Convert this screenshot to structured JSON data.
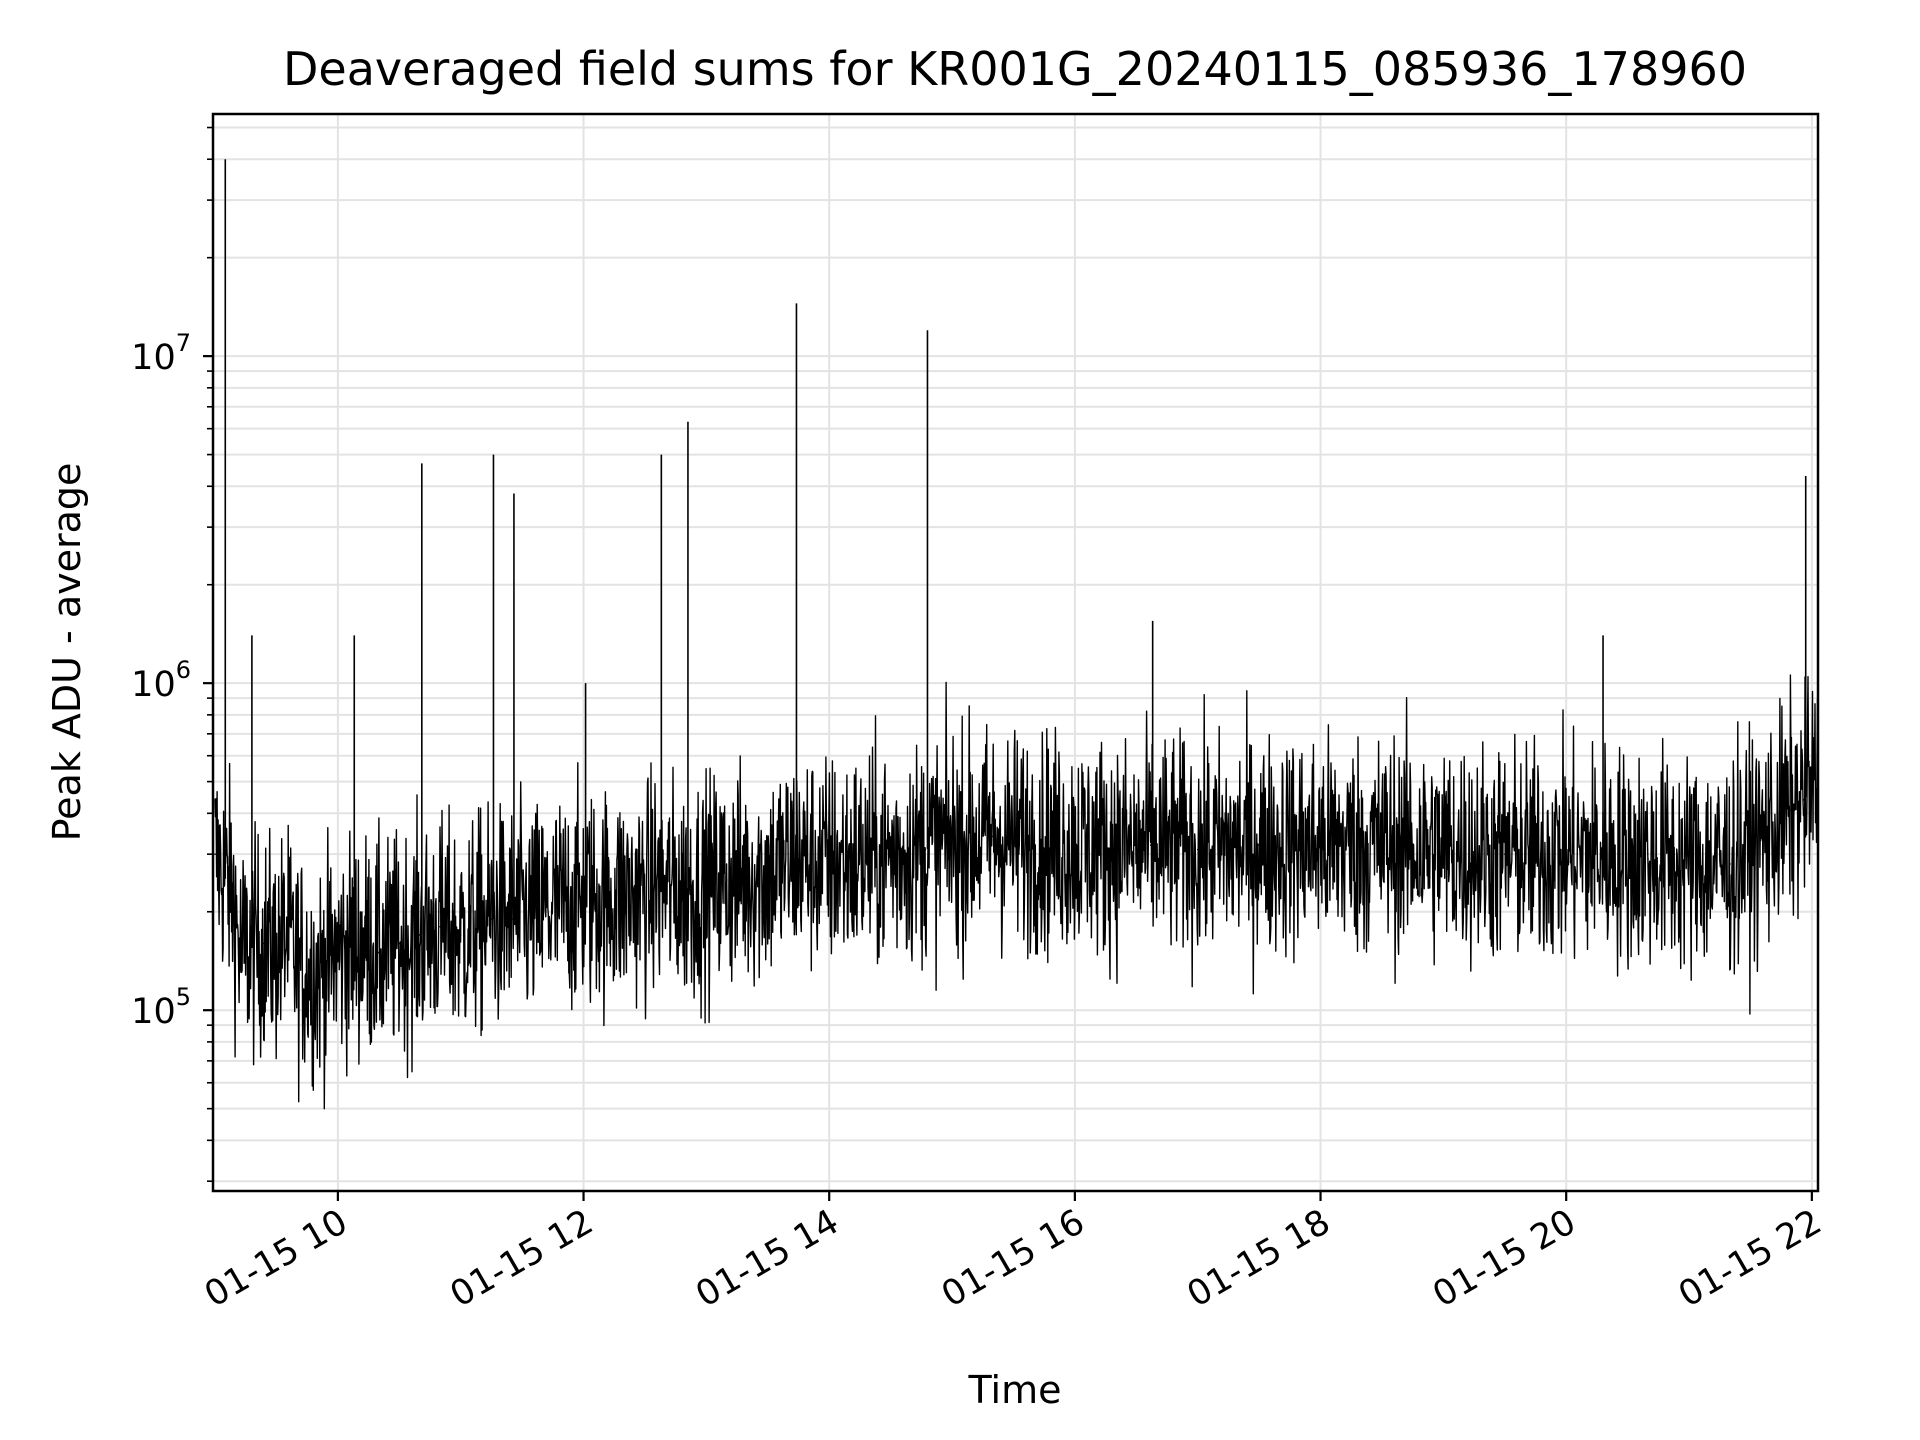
{
  "chart_data": {
    "type": "line",
    "title": "Deaveraged field sums for KR001G_20240115_085936_178960",
    "xlabel": "Time",
    "ylabel": "Peak ADU - average",
    "y_scale": "log",
    "xlim": [
      "2024-01-15 08:59",
      "2024-01-15 22:03"
    ],
    "ylim": [
      28000,
      55000000
    ],
    "grid": true,
    "line_color": "#000000",
    "x_ticks": [
      {
        "value": "2024-01-15 10:00",
        "label": "01-15 10"
      },
      {
        "value": "2024-01-15 12:00",
        "label": "01-15 12"
      },
      {
        "value": "2024-01-15 14:00",
        "label": "01-15 14"
      },
      {
        "value": "2024-01-15 16:00",
        "label": "01-15 16"
      },
      {
        "value": "2024-01-15 18:00",
        "label": "01-15 18"
      },
      {
        "value": "2024-01-15 20:00",
        "label": "01-15 20"
      },
      {
        "value": "2024-01-15 22:00",
        "label": "01-15 22"
      }
    ],
    "y_ticks": [
      {
        "value": 100000,
        "label_base": "10",
        "label_exp": "5"
      },
      {
        "value": 1000000,
        "label_base": "10",
        "label_exp": "6"
      },
      {
        "value": 10000000,
        "label_base": "10",
        "label_exp": "7"
      }
    ],
    "series": [
      {
        "x": [
          "2024-01-15 09:00",
          "2024-01-15 09:05",
          "2024-01-15 09:09",
          "2024-01-15 09:12",
          "2024-01-15 09:18",
          "2024-01-15 09:24",
          "2024-01-15 09:30",
          "2024-01-15 09:35",
          "2024-01-15 09:40",
          "2024-01-15 09:50",
          "2024-01-15 10:00",
          "2024-01-15 10:08",
          "2024-01-15 10:14",
          "2024-01-15 10:20",
          "2024-01-15 10:30",
          "2024-01-15 10:40",
          "2024-01-15 10:41",
          "2024-01-15 10:50",
          "2024-01-15 11:00",
          "2024-01-15 11:15",
          "2024-01-15 11:16",
          "2024-01-15 11:25",
          "2024-01-15 11:26",
          "2024-01-15 11:40",
          "2024-01-15 12:00",
          "2024-01-15 12:01",
          "2024-01-15 12:20",
          "2024-01-15 12:37",
          "2024-01-15 12:38",
          "2024-01-15 12:50",
          "2024-01-15 12:51",
          "2024-01-15 13:10",
          "2024-01-15 13:30",
          "2024-01-15 13:43",
          "2024-01-15 13:44",
          "2024-01-15 14:00",
          "2024-01-15 14:20",
          "2024-01-15 14:47",
          "2024-01-15 14:48",
          "2024-01-15 15:00",
          "2024-01-15 15:20",
          "2024-01-15 15:40",
          "2024-01-15 16:00",
          "2024-01-15 16:30",
          "2024-01-15 16:37",
          "2024-01-15 16:38",
          "2024-01-15 17:00",
          "2024-01-15 17:30",
          "2024-01-15 18:00",
          "2024-01-15 18:30",
          "2024-01-15 19:00",
          "2024-01-15 19:30",
          "2024-01-15 20:00",
          "2024-01-15 20:17",
          "2024-01-15 20:18",
          "2024-01-15 20:40",
          "2024-01-15 21:00",
          "2024-01-15 21:20",
          "2024-01-15 21:35",
          "2024-01-15 21:50",
          "2024-01-15 21:56",
          "2024-01-15 21:57",
          "2024-01-15 22:03"
        ],
        "y": [
          300000,
          40000000,
          220000,
          150000,
          1400000,
          160000,
          150000,
          170000,
          140000,
          130000,
          150000,
          1400000,
          160000,
          150000,
          160000,
          170000,
          4700000,
          180000,
          170000,
          190000,
          5000000,
          190000,
          3800000,
          200000,
          220000,
          1000000,
          220000,
          240000,
          5000000,
          230000,
          6300000,
          250000,
          260000,
          290000,
          14500000,
          280000,
          290000,
          310000,
          12000000,
          330000,
          340000,
          330000,
          320000,
          310000,
          320000,
          1550000,
          310000,
          320000,
          320000,
          320000,
          310000,
          300000,
          300000,
          300000,
          1400000,
          290000,
          280000,
          280000,
          330000,
          410000,
          440000,
          4300000,
          500000
        ]
      }
    ]
  }
}
